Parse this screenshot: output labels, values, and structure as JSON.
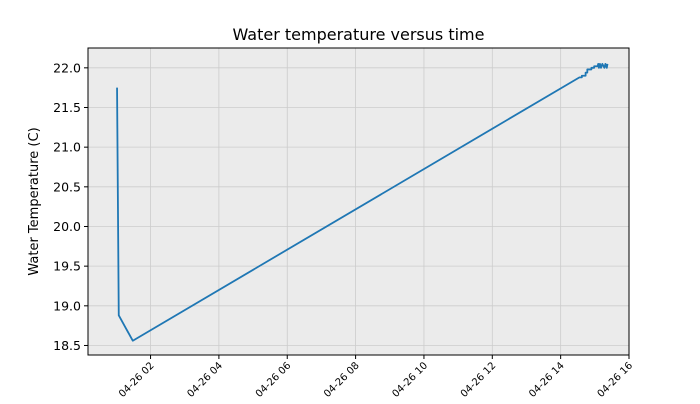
{
  "chart_data": {
    "type": "line",
    "title": "Water temperature versus time",
    "xlabel": "",
    "ylabel": "Water Temperature (C)",
    "x_tick_labels": [
      "04-26 02",
      "04-26 04",
      "04-26 06",
      "04-26 08",
      "04-26 10",
      "04-26 12",
      "04-26 14",
      "04-26 16"
    ],
    "x_tick_hours": [
      2,
      4,
      6,
      8,
      10,
      12,
      14,
      16
    ],
    "y_tick_labels": [
      "18.5",
      "19.0",
      "19.5",
      "20.0",
      "20.5",
      "21.0",
      "21.5",
      "22.0"
    ],
    "y_tick_values": [
      18.5,
      19.0,
      19.5,
      20.0,
      20.5,
      21.0,
      21.5,
      22.0
    ],
    "xlim_hours": [
      0.17,
      16.0
    ],
    "ylim": [
      18.38,
      22.25
    ],
    "grid": true,
    "colors": {
      "line": "#1f77b4",
      "plot_background": "#ebebeb",
      "grid": "#cccccc"
    },
    "series": [
      {
        "x_hours": [
          1.02,
          1.07,
          1.48,
          14.55,
          14.62,
          14.62,
          14.73,
          14.73,
          14.78,
          14.78,
          14.9,
          14.9,
          14.98,
          14.98,
          15.08,
          15.1,
          15.12,
          15.15,
          15.18,
          15.22,
          15.28,
          15.31,
          15.35,
          15.37
        ],
        "values": [
          21.75,
          18.88,
          18.56,
          21.88,
          21.88,
          21.9,
          21.9,
          21.94,
          21.94,
          21.98,
          21.98,
          22.0,
          22.0,
          22.02,
          22.02,
          22.05,
          22.0,
          22.05,
          22.0,
          22.05,
          22.0,
          22.05,
          22.0,
          22.05
        ]
      }
    ]
  }
}
